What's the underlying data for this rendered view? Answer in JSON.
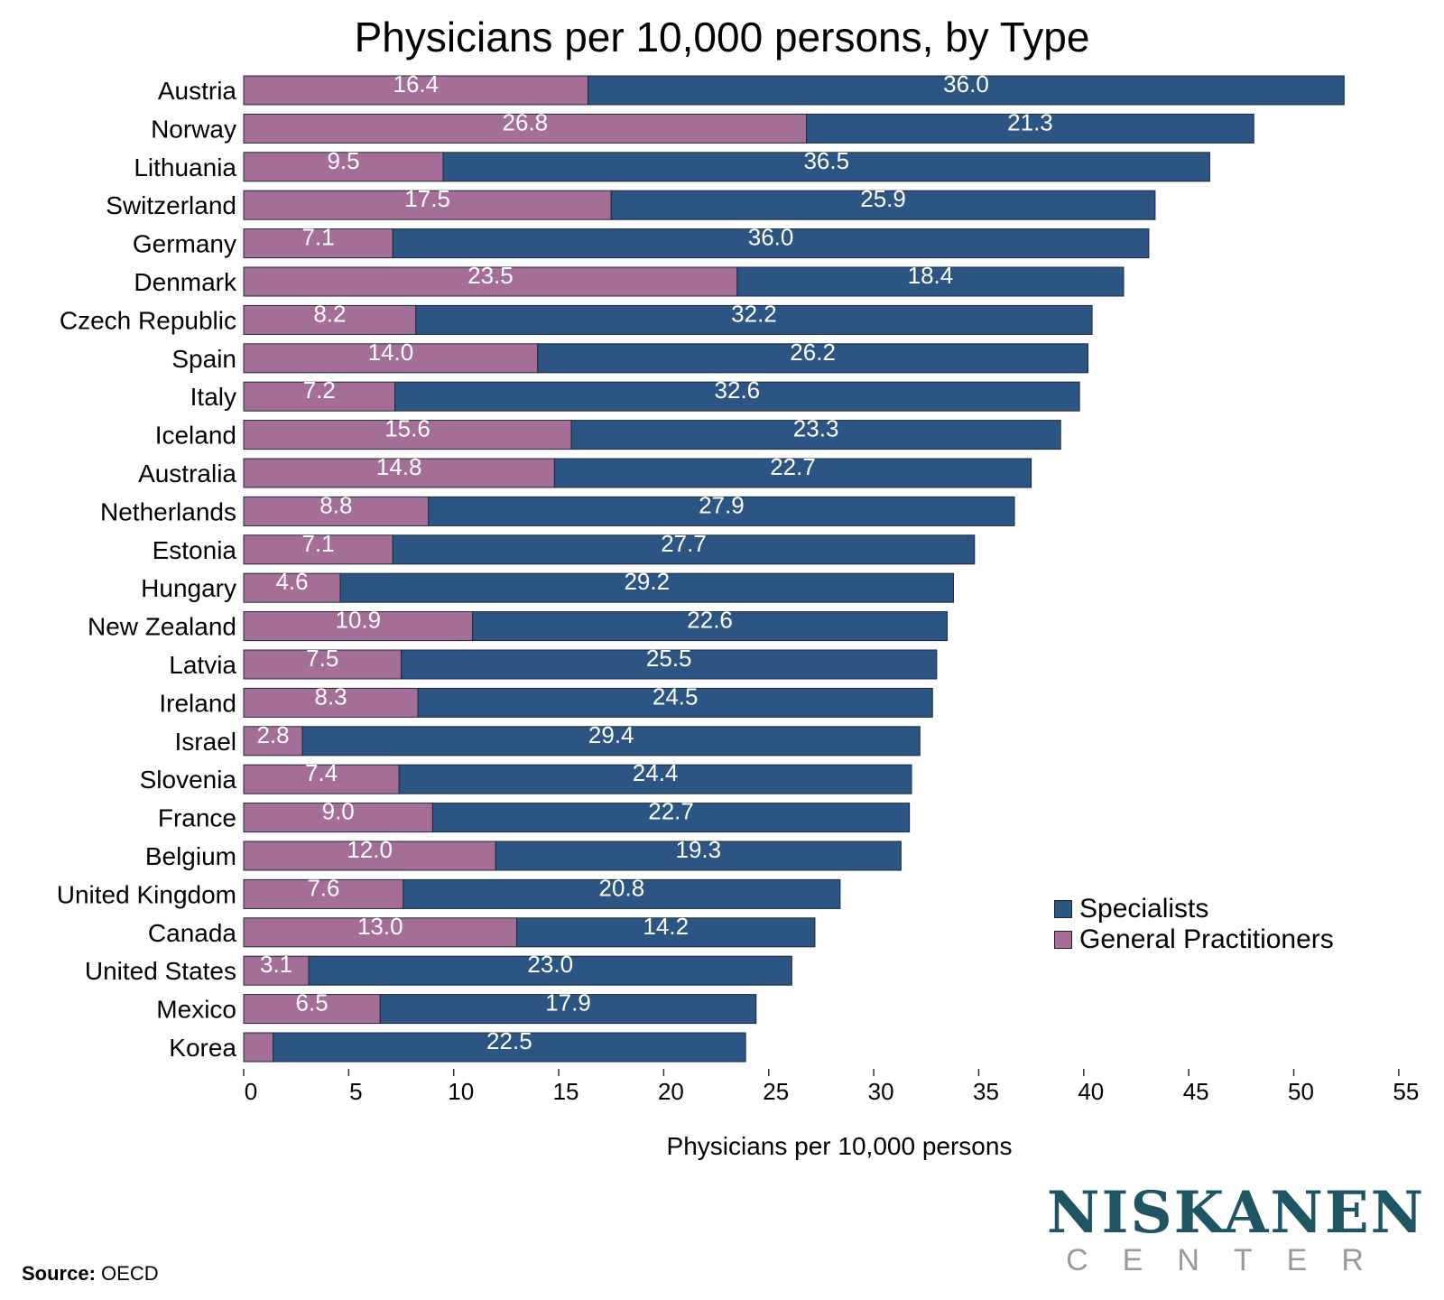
{
  "colors": {
    "specialists": "#2c5583",
    "general_practitioners": "#a56e96",
    "bar_outline": "#1b2a3a"
  },
  "chart_data": {
    "type": "bar",
    "orientation": "horizontal",
    "stacked": true,
    "title": "Physicians per 10,000 persons, by Type",
    "xlabel": "Physicians per 10,000 persons",
    "ylabel": "",
    "xlim": [
      0,
      55
    ],
    "xticks": [
      0,
      5,
      10,
      15,
      20,
      25,
      30,
      35,
      40,
      45,
      50,
      55
    ],
    "grid": false,
    "legend_position": "bottom-right",
    "categories": [
      "Austria",
      "Norway",
      "Lithuania",
      "Switzerland",
      "Germany",
      "Denmark",
      "Czech Republic",
      "Spain",
      "Italy",
      "Iceland",
      "Australia",
      "Netherlands",
      "Estonia",
      "Hungary",
      "New Zealand",
      "Latvia",
      "Ireland",
      "Israel",
      "Slovenia",
      "France",
      "Belgium",
      "United Kingdom",
      "Canada",
      "United States",
      "Mexico",
      "Korea"
    ],
    "series": [
      {
        "name": "General Practitioners",
        "values": [
          16.4,
          26.8,
          9.5,
          17.5,
          7.1,
          23.5,
          8.2,
          14.0,
          7.2,
          15.6,
          14.8,
          8.8,
          7.1,
          4.6,
          10.9,
          7.5,
          8.3,
          2.8,
          7.4,
          9.0,
          12.0,
          7.6,
          13.0,
          3.1,
          6.5,
          1.4
        ],
        "labels": [
          "16.4",
          "26.8",
          "9.5",
          "17.5",
          "7.1",
          "23.5",
          "8.2",
          "14.0",
          "7.2",
          "15.6",
          "14.8",
          "8.8",
          "7.1",
          "4.6",
          "10.9",
          "7.5",
          "8.3",
          "2.8",
          "7.4",
          "9.0",
          "12.0",
          "7.6",
          "13.0",
          "3.1",
          "6.5",
          ""
        ]
      },
      {
        "name": "Specialists",
        "values": [
          36.0,
          21.3,
          36.5,
          25.9,
          36.0,
          18.4,
          32.2,
          26.2,
          32.6,
          23.3,
          22.7,
          27.9,
          27.7,
          29.2,
          22.6,
          25.5,
          24.5,
          29.4,
          24.4,
          22.7,
          19.3,
          20.8,
          14.2,
          23.0,
          17.9,
          22.5
        ],
        "labels": [
          "36.0",
          "21.3",
          "36.5",
          "25.9",
          "36.0",
          "18.4",
          "32.2",
          "26.2",
          "32.6",
          "23.3",
          "22.7",
          "27.9",
          "27.7",
          "29.2",
          "22.6",
          "25.5",
          "24.5",
          "29.4",
          "24.4",
          "22.7",
          "19.3",
          "20.8",
          "14.2",
          "23.0",
          "17.9",
          "22.5"
        ]
      }
    ]
  },
  "legend": {
    "items": [
      "Specialists",
      "General Practitioners"
    ]
  },
  "source": {
    "label": "Source:",
    "text": "OECD"
  },
  "logo": {
    "main": "NISKANEN",
    "sub": "CENTER"
  }
}
